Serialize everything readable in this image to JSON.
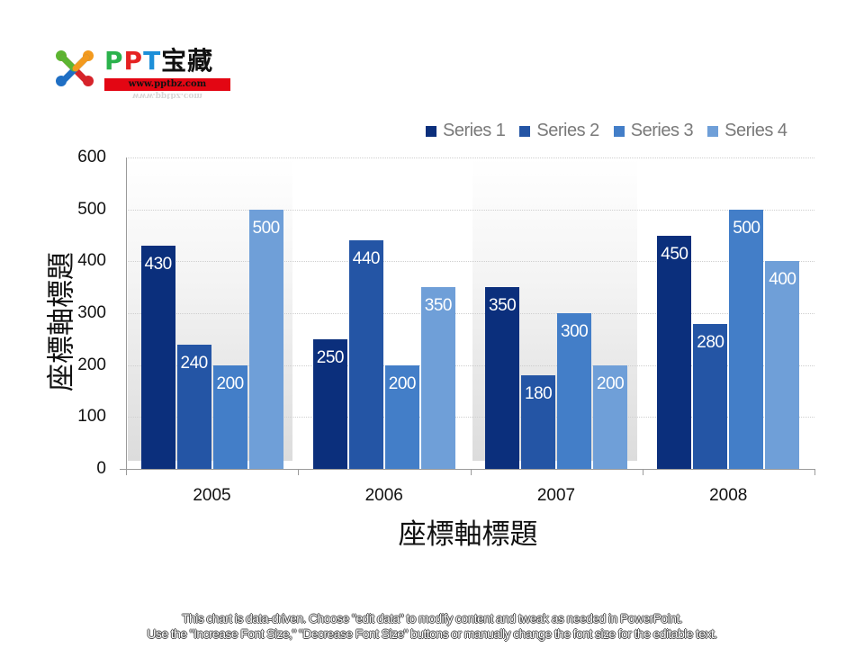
{
  "logo": {
    "brand_letters": [
      "P",
      "P",
      "T"
    ],
    "brand_cn": "宝藏",
    "url": "www.pptbz.com",
    "icon": "joomla-style-knot-icon"
  },
  "legend": [
    {
      "label": "Series 1",
      "color": "#0b2f7c"
    },
    {
      "label": "Series 2",
      "color": "#2455a5"
    },
    {
      "label": "Series 3",
      "color": "#437ec8"
    },
    {
      "label": "Series 4",
      "color": "#6f9fd8"
    }
  ],
  "chart_data": {
    "type": "bar",
    "title": "",
    "categories": [
      "2005",
      "2006",
      "2007",
      "2008"
    ],
    "series": [
      {
        "name": "Series 1",
        "values": [
          430,
          250,
          350,
          450
        ],
        "color": "#0b2f7c"
      },
      {
        "name": "Series 2",
        "values": [
          240,
          440,
          180,
          280
        ],
        "color": "#2455a5"
      },
      {
        "name": "Series 3",
        "values": [
          200,
          200,
          300,
          500
        ],
        "color": "#437ec8"
      },
      {
        "name": "Series 4",
        "values": [
          500,
          350,
          200,
          400
        ],
        "color": "#6f9fd8"
      }
    ],
    "xlabel": "座標軸標題",
    "ylabel": "座標軸標題",
    "ylim": [
      0,
      600
    ],
    "yticks": [
      "0",
      "100",
      "200",
      "300",
      "400",
      "500",
      "600"
    ],
    "grid": true,
    "legend_position": "top-right",
    "data_labels": true
  },
  "footnote": {
    "line1": "This chart is data-driven. Choose \"edit data\" to modify content and tweak as needed in PowerPoint.",
    "line2": "Use the \"Increase Font Size,\" \"Decrease Font Size\" buttons or manually change the font size for the editable text."
  }
}
